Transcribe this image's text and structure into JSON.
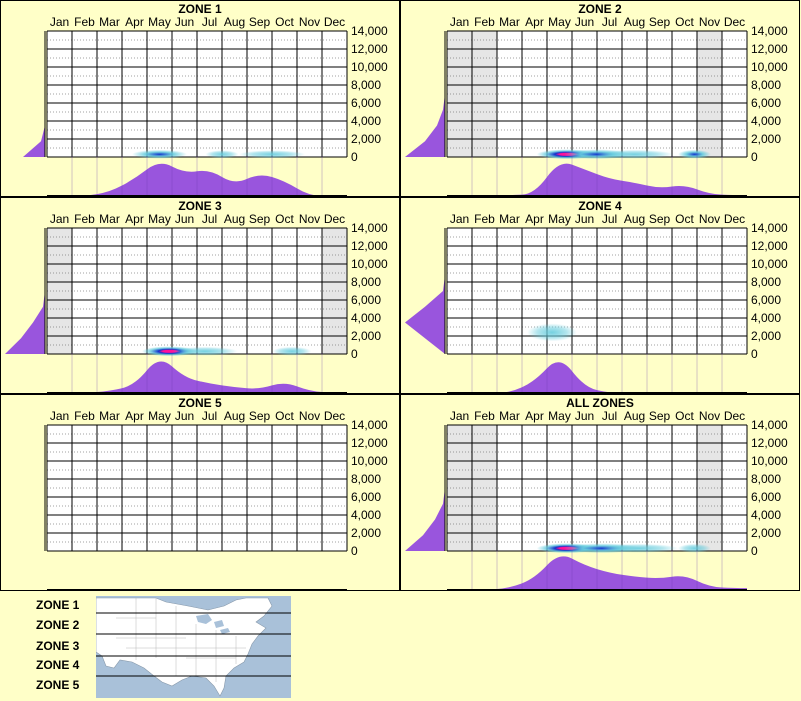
{
  "colors": {
    "background": "#ffffc8",
    "grid_bg": "#ffffff",
    "out_of_season": "#e6e6e6",
    "profile_fill": "#9955dd",
    "heat_low": "#66ccdd",
    "heat_mid": "#1133cc",
    "heat_high": "#ff1199",
    "map_water": "#a9c1d9",
    "map_land": "#ffffff"
  },
  "legend": {
    "labels": [
      "ZONE 1",
      "ZONE 2",
      "ZONE 3",
      "ZONE 4",
      "ZONE 5"
    ],
    "map_icon": "north-america-map-icon"
  },
  "chart_data": [
    {
      "type": "heatmap",
      "title": "ZONE 1",
      "months": [
        "Jan",
        "Feb",
        "Mar",
        "Apr",
        "May",
        "Jun",
        "Jul",
        "Aug",
        "Sep",
        "Oct",
        "Nov",
        "Dec"
      ],
      "y_ticks": [
        "14,000",
        "12,000",
        "10,000",
        "8,000",
        "6,000",
        "4,000",
        "2,000",
        "0"
      ],
      "ylim": [
        0,
        14000
      ],
      "out_of_season_months": [],
      "monthly_profile": [
        0,
        0,
        0.1,
        0.45,
        0.95,
        0.6,
        0.7,
        0.3,
        0.6,
        0.4,
        0,
        0
      ],
      "elevation_profile": [
        0.55,
        0.1,
        0,
        0,
        0,
        0,
        0,
        0,
        0
      ],
      "hotspots": [
        {
          "month": 4.0,
          "elevation": 300,
          "intensity": 0.55,
          "month_spread": 0.5,
          "elev_spread": 450
        },
        {
          "month": 6.5,
          "elevation": 300,
          "intensity": 0.3,
          "month_spread": 0.3,
          "elev_spread": 400
        },
        {
          "month": 8.5,
          "elevation": 300,
          "intensity": 0.25,
          "month_spread": 0.6,
          "elev_spread": 400
        }
      ]
    },
    {
      "type": "heatmap",
      "title": "ZONE 2",
      "months": [
        "Jan",
        "Feb",
        "Mar",
        "Apr",
        "May",
        "Jun",
        "Jul",
        "Aug",
        "Sep",
        "Oct",
        "Nov",
        "Dec"
      ],
      "y_ticks": [
        "14,000",
        "12,000",
        "10,000",
        "8,000",
        "6,000",
        "4,000",
        "2,000",
        "0"
      ],
      "ylim": [
        0,
        14000
      ],
      "out_of_season_months": [
        0,
        1,
        10
      ],
      "monthly_profile": [
        0,
        0,
        0.02,
        0.05,
        0.95,
        0.7,
        0.45,
        0.35,
        0.2,
        0.3,
        0.05,
        0.02
      ],
      "elevation_profile": [
        1.0,
        0.5,
        0.2,
        0.05,
        0,
        0,
        0,
        0,
        0
      ],
      "hotspots": [
        {
          "month": 4.3,
          "elevation": 300,
          "intensity": 1.0,
          "month_spread": 0.55,
          "elev_spread": 500
        },
        {
          "month": 5.5,
          "elevation": 300,
          "intensity": 0.55,
          "month_spread": 0.6,
          "elev_spread": 500
        },
        {
          "month": 7.0,
          "elevation": 300,
          "intensity": 0.35,
          "month_spread": 0.7,
          "elev_spread": 450
        },
        {
          "month": 9.4,
          "elevation": 300,
          "intensity": 0.45,
          "month_spread": 0.3,
          "elev_spread": 450
        }
      ]
    },
    {
      "type": "heatmap",
      "title": "ZONE 3",
      "months": [
        "Jan",
        "Feb",
        "Mar",
        "Apr",
        "May",
        "Jun",
        "Jul",
        "Aug",
        "Sep",
        "Oct",
        "Nov",
        "Dec"
      ],
      "y_ticks": [
        "14,000",
        "12,000",
        "10,000",
        "8,000",
        "6,000",
        "4,000",
        "2,000",
        "0"
      ],
      "ylim": [
        0,
        14000
      ],
      "out_of_season_months": [
        0,
        11
      ],
      "monthly_profile": [
        0,
        0,
        0.05,
        0.2,
        1.0,
        0.4,
        0.25,
        0.15,
        0.1,
        0.3,
        0.05,
        0
      ],
      "elevation_profile": [
        1.0,
        0.6,
        0.3,
        0.05,
        0,
        0,
        0,
        0,
        0
      ],
      "hotspots": [
        {
          "month": 4.4,
          "elevation": 300,
          "intensity": 1.0,
          "month_spread": 0.5,
          "elev_spread": 500
        },
        {
          "month": 5.8,
          "elevation": 300,
          "intensity": 0.35,
          "month_spread": 0.6,
          "elev_spread": 450
        },
        {
          "month": 9.3,
          "elevation": 300,
          "intensity": 0.35,
          "month_spread": 0.35,
          "elev_spread": 450
        }
      ]
    },
    {
      "type": "heatmap",
      "title": "ZONE 4",
      "months": [
        "Jan",
        "Feb",
        "Mar",
        "Apr",
        "May",
        "Jun",
        "Jul",
        "Aug",
        "Sep",
        "Oct",
        "Nov",
        "Dec"
      ],
      "y_ticks": [
        "14,000",
        "12,000",
        "10,000",
        "8,000",
        "6,000",
        "4,000",
        "2,000",
        "0"
      ],
      "ylim": [
        0,
        14000
      ],
      "out_of_season_months": [],
      "monthly_profile": [
        0,
        0,
        0,
        0.3,
        1.0,
        0.15,
        0,
        0,
        0,
        0,
        0,
        0
      ],
      "elevation_profile": [
        0,
        0.5,
        1.0,
        0.5,
        0.05,
        0,
        0,
        0,
        0
      ],
      "hotspots": [
        {
          "month": 3.7,
          "elevation": 2400,
          "intensity": 0.35,
          "month_spread": 0.45,
          "elev_spread": 900
        }
      ]
    },
    {
      "type": "heatmap",
      "title": "ZONE 5",
      "months": [
        "Jan",
        "Feb",
        "Mar",
        "Apr",
        "May",
        "Jun",
        "Jul",
        "Aug",
        "Sep",
        "Oct",
        "Nov",
        "Dec"
      ],
      "y_ticks": [
        "14,000",
        "12,000",
        "10,000",
        "8,000",
        "6,000",
        "4,000",
        "2,000",
        "0"
      ],
      "ylim": [
        0,
        14000
      ],
      "out_of_season_months": [],
      "monthly_profile": [
        0,
        0,
        0,
        0,
        0,
        0,
        0,
        0,
        0,
        0,
        0,
        0
      ],
      "elevation_profile": [
        0,
        0,
        0,
        0,
        0,
        0,
        0,
        0,
        0
      ],
      "hotspots": []
    },
    {
      "type": "heatmap",
      "title": "ALL ZONES",
      "months": [
        "Jan",
        "Feb",
        "Mar",
        "Apr",
        "May",
        "Jun",
        "Jul",
        "Aug",
        "Sep",
        "Oct",
        "Nov",
        "Dec"
      ],
      "y_ticks": [
        "14,000",
        "12,000",
        "10,000",
        "8,000",
        "6,000",
        "4,000",
        "2,000",
        "0"
      ],
      "ylim": [
        0,
        14000
      ],
      "out_of_season_months": [
        0,
        1,
        10
      ],
      "monthly_profile": [
        0,
        0,
        0.05,
        0.3,
        1.0,
        0.65,
        0.45,
        0.35,
        0.3,
        0.4,
        0.08,
        0.05
      ],
      "elevation_profile": [
        1.0,
        0.55,
        0.25,
        0.05,
        0,
        0,
        0,
        0,
        0
      ],
      "hotspots": [
        {
          "month": 4.3,
          "elevation": 300,
          "intensity": 1.0,
          "month_spread": 0.55,
          "elev_spread": 500
        },
        {
          "month": 5.7,
          "elevation": 300,
          "intensity": 0.5,
          "month_spread": 0.7,
          "elev_spread": 500
        },
        {
          "month": 7.2,
          "elevation": 300,
          "intensity": 0.3,
          "month_spread": 0.7,
          "elev_spread": 450
        },
        {
          "month": 9.4,
          "elevation": 300,
          "intensity": 0.4,
          "month_spread": 0.3,
          "elev_spread": 450
        }
      ]
    }
  ]
}
